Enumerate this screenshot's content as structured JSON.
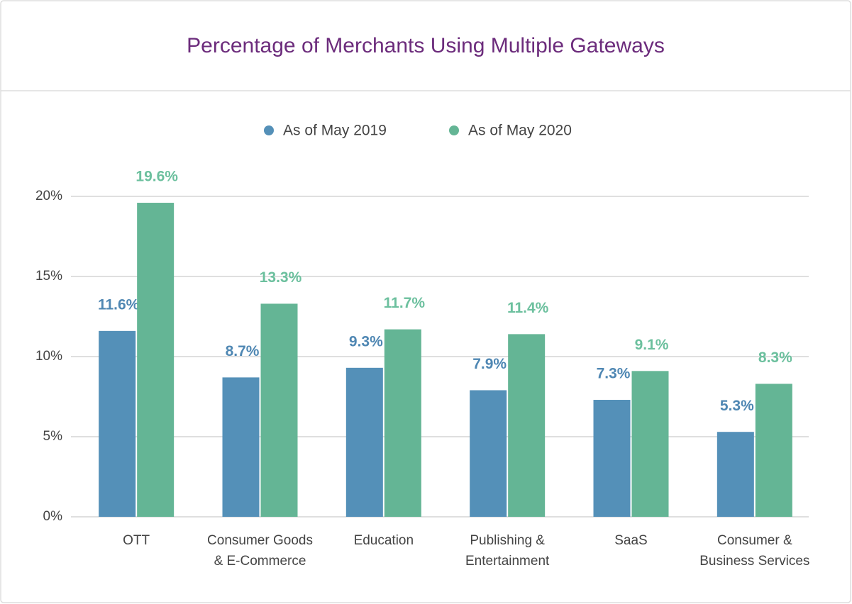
{
  "chart_data": {
    "type": "bar",
    "title": "Percentage of Merchants Using Multiple Gateways",
    "categories": [
      "OTT",
      "Consumer Goods & E-Commerce",
      "Education",
      "Publishing & Entertainment",
      "SaaS",
      "Consumer & Business Services"
    ],
    "series": [
      {
        "name": "As of May 2019",
        "color": "#5490b8",
        "label_color": "#4f87b3",
        "values": [
          11.6,
          8.7,
          9.3,
          7.9,
          7.3,
          5.3
        ],
        "value_labels": [
          "11.6%",
          "8.7%",
          "9.3%",
          "7.9%",
          "7.3%",
          "5.3%"
        ]
      },
      {
        "name": "As of May 2020",
        "color": "#64b595",
        "label_color": "#6cc09e",
        "values": [
          19.6,
          13.3,
          11.7,
          11.4,
          9.1,
          8.3
        ],
        "value_labels": [
          "19.6%",
          "13.3%",
          "11.7%",
          "11.4%",
          "9.1%",
          "8.3%"
        ]
      }
    ],
    "ylim": [
      0,
      20
    ],
    "yticks": [
      {
        "value": 0,
        "label": "0%"
      },
      {
        "value": 5,
        "label": "5%"
      },
      {
        "value": 10,
        "label": "10%"
      },
      {
        "value": 15,
        "label": "15%"
      },
      {
        "value": 20,
        "label": "20%"
      }
    ],
    "grid": true
  }
}
